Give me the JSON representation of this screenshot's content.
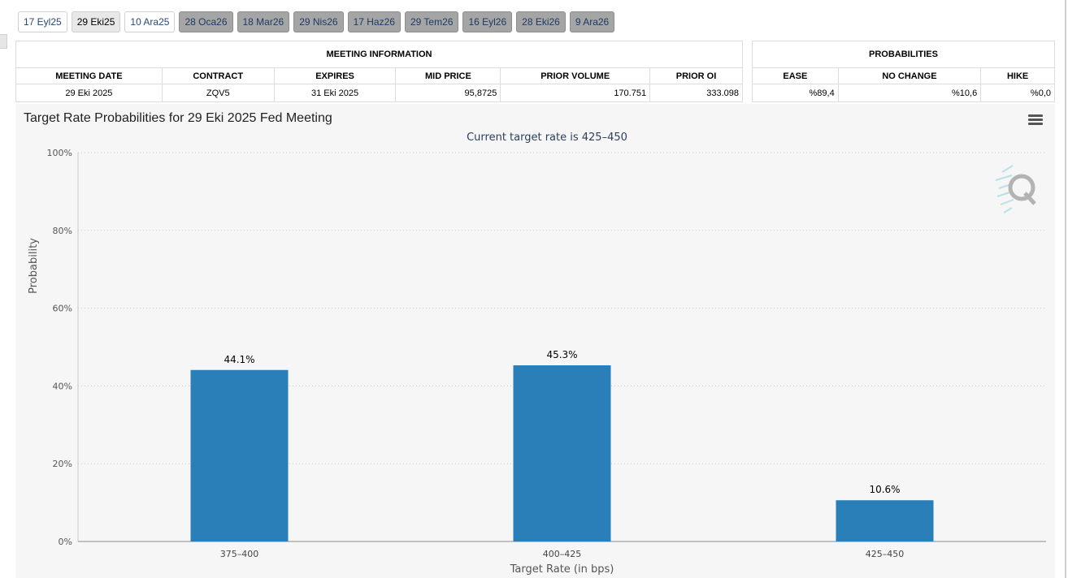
{
  "tabs": [
    {
      "label": "17 Eyl25",
      "state": "normal"
    },
    {
      "label": "29 Eki25",
      "state": "active"
    },
    {
      "label": "10 Ara25",
      "state": "normal"
    },
    {
      "label": "28 Oca26",
      "state": "grey"
    },
    {
      "label": "18 Mar26",
      "state": "grey"
    },
    {
      "label": "29 Nis26",
      "state": "grey"
    },
    {
      "label": "17 Haz26",
      "state": "grey"
    },
    {
      "label": "29 Tem26",
      "state": "grey"
    },
    {
      "label": "16 Eyl26",
      "state": "grey"
    },
    {
      "label": "28 Eki26",
      "state": "grey"
    },
    {
      "label": "9 Ara26",
      "state": "grey"
    }
  ],
  "meeting_info": {
    "title": "MEETING INFORMATION",
    "headers": [
      "MEETING DATE",
      "CONTRACT",
      "EXPIRES",
      "MID PRICE",
      "PRIOR VOLUME",
      "PRIOR OI"
    ],
    "row": [
      "29 Eki 2025",
      "ZQV5",
      "31 Eki 2025",
      "95,8725",
      "170.751",
      "333.098"
    ]
  },
  "probabilities": {
    "title": "PROBABILITIES",
    "headers": [
      "EASE",
      "NO CHANGE",
      "HIKE"
    ],
    "row": [
      "%89,4",
      "%10,6",
      "%0,0"
    ]
  },
  "chart": {
    "title": "Target Rate Probabilities for 29 Eki 2025 Fed Meeting",
    "subtitle": "Current target rate is 425–450",
    "menu_icon": "hamburger-menu-icon",
    "watermark_icon": "quikstrike-q-logo",
    "bar_color": "#2b7fb8"
  },
  "chart_data": {
    "type": "bar",
    "categories": [
      "375–400",
      "400–425",
      "425–450"
    ],
    "values": [
      44.1,
      45.3,
      10.6
    ],
    "data_labels": [
      "44.1%",
      "45.3%",
      "10.6%"
    ],
    "xlabel": "Target Rate (in bps)",
    "ylabel": "Probability",
    "ylim": [
      0,
      100
    ],
    "yticks": [
      0,
      20,
      40,
      60,
      80,
      100
    ],
    "ytick_labels": [
      "0%",
      "20%",
      "40%",
      "60%",
      "80%",
      "100%"
    ],
    "grid": true
  }
}
